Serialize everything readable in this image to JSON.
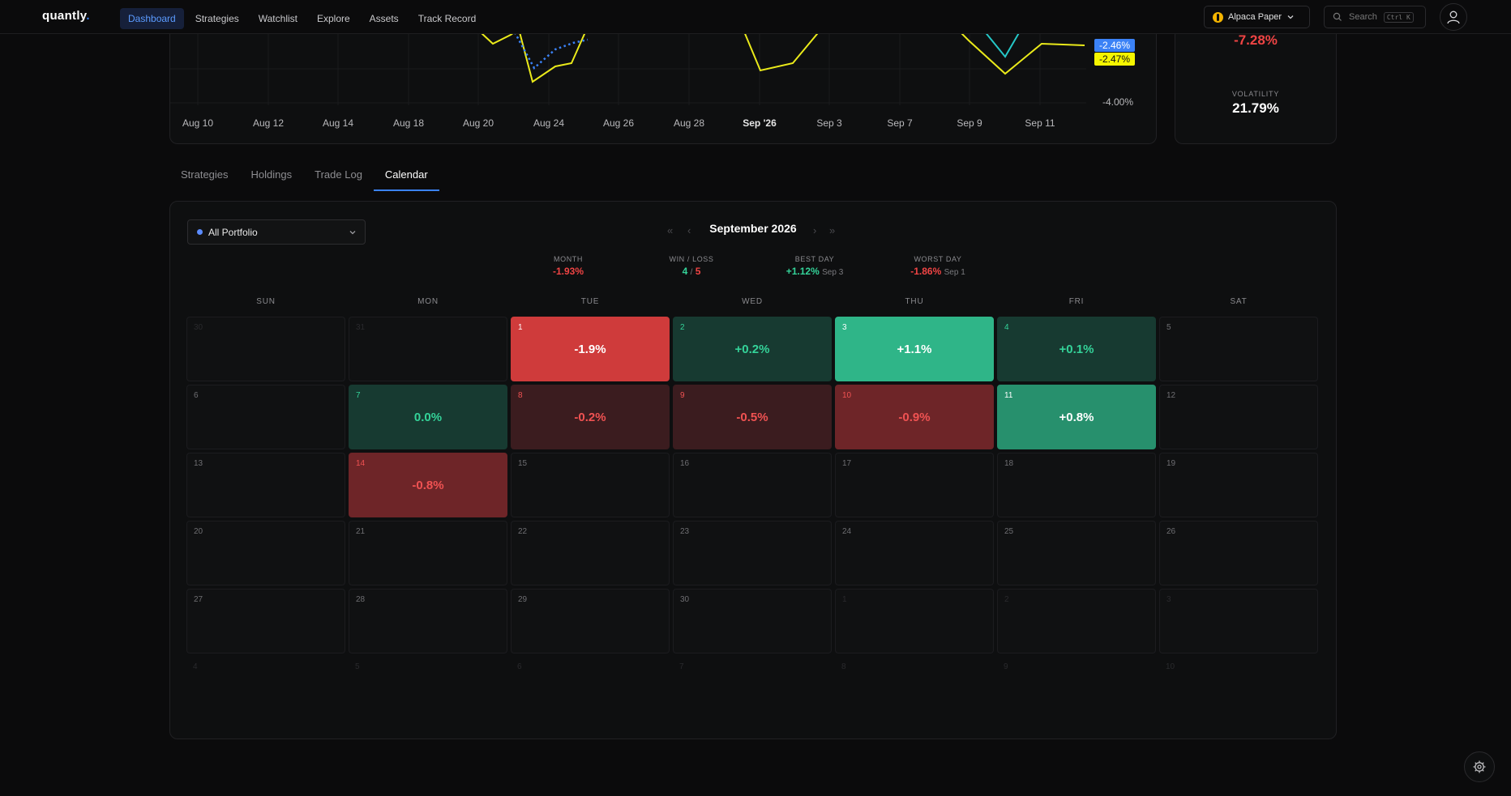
{
  "nav": {
    "logo": "quantly",
    "items": [
      {
        "label": "Dashboard",
        "active": true
      },
      {
        "label": "Strategies",
        "active": false
      },
      {
        "label": "Watchlist",
        "active": false
      },
      {
        "label": "Explore",
        "active": false
      },
      {
        "label": "Assets",
        "active": false
      },
      {
        "label": "Track Record",
        "active": false
      }
    ],
    "account_label": "Alpaca Paper",
    "search_placeholder": "Search",
    "search_shortcut": "Ctrl K"
  },
  "chart_data": {
    "type": "line",
    "x_ticks": [
      "Aug 10",
      "Aug 12",
      "Aug 14",
      "Aug 18",
      "Aug 20",
      "Aug 24",
      "Aug 26",
      "Aug 28",
      "Sep '26",
      "Sep 3",
      "Sep 7",
      "Sep 9",
      "Sep 11"
    ],
    "bold_tick": "Sep '26",
    "y_ticks": [
      "-4.00%"
    ],
    "last_values": [
      {
        "value": "-2.46%",
        "color": "#3b82f6"
      },
      {
        "value": "-2.47%",
        "color": "#f5f500"
      }
    ]
  },
  "stats": {
    "top_value": "-7.28%",
    "volatility_label": "VOLATILITY",
    "volatility_value": "21.79%"
  },
  "tabs": [
    {
      "label": "Strategies",
      "active": false
    },
    {
      "label": "Holdings",
      "active": false
    },
    {
      "label": "Trade Log",
      "active": false
    },
    {
      "label": "Calendar",
      "active": true
    }
  ],
  "calendar": {
    "portfolio_label": "All Portfolio",
    "month_title": "September 2026",
    "summary": {
      "month_label": "MONTH",
      "month_value": "-1.93%",
      "winloss_label": "WIN / LOSS",
      "wins": "4",
      "losses": "5",
      "slash": "/",
      "best_label": "BEST DAY",
      "best_value": "+1.12%",
      "best_date": "Sep 3",
      "worst_label": "WORST DAY",
      "worst_value": "-1.86%",
      "worst_date": "Sep 1"
    },
    "weekdays": [
      "SUN",
      "MON",
      "TUE",
      "WED",
      "THU",
      "FRI",
      "SAT"
    ],
    "weeks": [
      [
        {
          "d": "30",
          "o": true
        },
        {
          "d": "31",
          "o": true
        },
        {
          "d": "1",
          "v": "-1.9%",
          "t": "loss-strong"
        },
        {
          "d": "2",
          "v": "+0.2%",
          "t": "gain-dim"
        },
        {
          "d": "3",
          "v": "+1.1%",
          "t": "gain-strong"
        },
        {
          "d": "4",
          "v": "+0.1%",
          "t": "gain-dim"
        },
        {
          "d": "5"
        }
      ],
      [
        {
          "d": "6"
        },
        {
          "d": "7",
          "v": "0.0%",
          "t": "gain-dim"
        },
        {
          "d": "8",
          "v": "-0.2%",
          "t": "loss-dim"
        },
        {
          "d": "9",
          "v": "-0.5%",
          "t": "loss-dim"
        },
        {
          "d": "10",
          "v": "-0.9%",
          "t": "loss-mid"
        },
        {
          "d": "11",
          "v": "+0.8%",
          "t": "gain-mid"
        },
        {
          "d": "12"
        }
      ],
      [
        {
          "d": "13"
        },
        {
          "d": "14",
          "v": "-0.8%",
          "t": "loss-mid"
        },
        {
          "d": "15"
        },
        {
          "d": "16"
        },
        {
          "d": "17"
        },
        {
          "d": "18"
        },
        {
          "d": "19"
        }
      ],
      [
        {
          "d": "20"
        },
        {
          "d": "21"
        },
        {
          "d": "22"
        },
        {
          "d": "23"
        },
        {
          "d": "24"
        },
        {
          "d": "25"
        },
        {
          "d": "26"
        }
      ],
      [
        {
          "d": "27"
        },
        {
          "d": "28"
        },
        {
          "d": "29"
        },
        {
          "d": "30"
        },
        {
          "d": "1",
          "o": true
        },
        {
          "d": "2",
          "o": true
        },
        {
          "d": "3",
          "o": true
        }
      ],
      [
        {
          "d": "4",
          "o": true,
          "h": true
        },
        {
          "d": "5",
          "o": true,
          "h": true
        },
        {
          "d": "6",
          "o": true,
          "h": true
        },
        {
          "d": "7",
          "o": true,
          "h": true
        },
        {
          "d": "8",
          "o": true,
          "h": true
        },
        {
          "d": "9",
          "o": true,
          "h": true
        },
        {
          "d": "10",
          "o": true,
          "h": true
        }
      ]
    ],
    "tones": {
      "loss-strong": {
        "bg": "#cf3b3b",
        "fg": "#ffffff"
      },
      "loss-mid": {
        "bg": "#6e2528",
        "fg": "#f05252"
      },
      "loss-dim": {
        "bg": "#3b1c1f",
        "fg": "#f05252"
      },
      "gain-strong": {
        "bg": "#2fb588",
        "fg": "#ffffff"
      },
      "gain-mid": {
        "bg": "#27906d",
        "fg": "#ffffff"
      },
      "gain-dim": {
        "bg": "#173a31",
        "fg": "#34d399"
      }
    }
  }
}
